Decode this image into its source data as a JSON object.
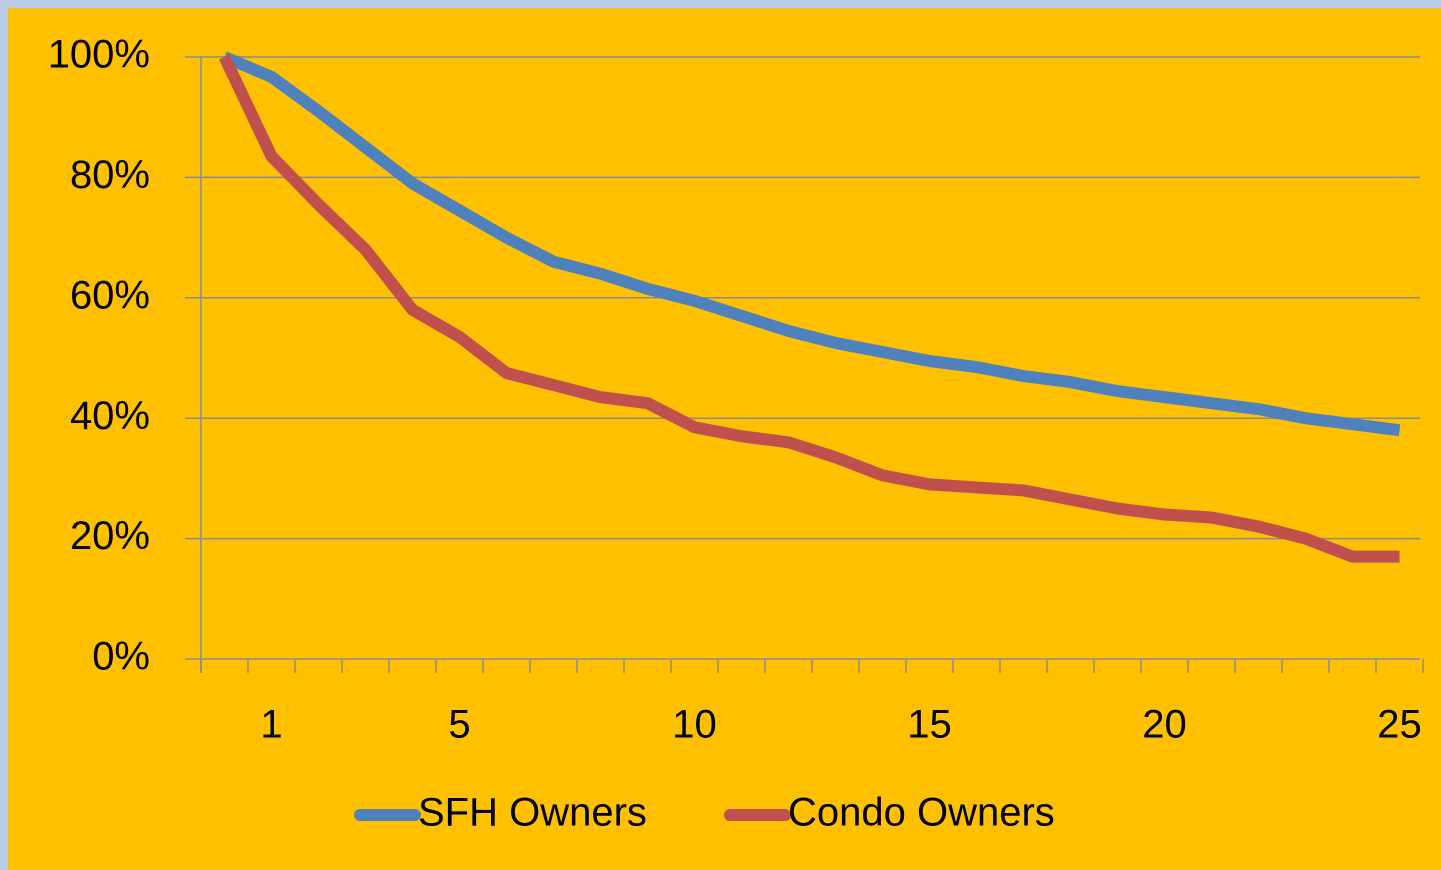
{
  "chart_data": {
    "type": "line",
    "categories": [
      null,
      "1",
      null,
      null,
      null,
      "5",
      null,
      null,
      null,
      null,
      "10",
      null,
      null,
      null,
      null,
      "15",
      null,
      null,
      null,
      null,
      "20",
      null,
      null,
      null,
      null,
      "25"
    ],
    "series": [
      {
        "name": "SFH Owners",
        "color": "#4f81bd",
        "values": [
          100,
          96.7,
          91,
          85,
          79,
          74.5,
          70,
          66,
          64,
          61.5,
          59.5,
          57,
          54.5,
          52.5,
          51,
          49.5,
          48.5,
          47,
          46,
          44.5,
          43.5,
          42.5,
          41.5,
          40,
          39,
          38
        ]
      },
      {
        "name": "Condo Owners",
        "color": "#c0504d",
        "values": [
          100,
          83.5,
          75.5,
          68,
          58,
          53.5,
          47.5,
          45.5,
          43.5,
          42.5,
          38.5,
          37,
          36,
          33.5,
          30.5,
          29,
          28.5,
          28,
          26.5,
          25,
          24,
          23.5,
          22,
          20,
          17,
          17
        ]
      }
    ],
    "ylim": [
      0,
      100
    ],
    "yticks": [
      {
        "value": 0,
        "label": "0%"
      },
      {
        "value": 20,
        "label": "20%"
      },
      {
        "value": 40,
        "label": "40%"
      },
      {
        "value": 60,
        "label": "60%"
      },
      {
        "value": 80,
        "label": "80%"
      },
      {
        "value": 100,
        "label": "100%"
      }
    ],
    "grid": true,
    "legend": "bottom"
  }
}
